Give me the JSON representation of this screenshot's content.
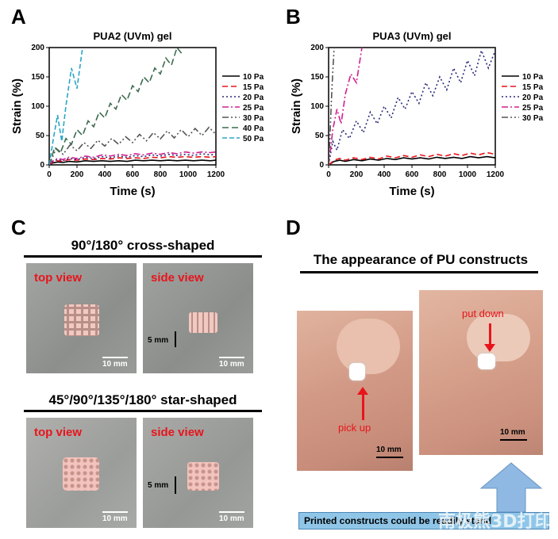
{
  "panels": {
    "A": {
      "letter": "A"
    },
    "B": {
      "letter": "B"
    },
    "C": {
      "letter": "C",
      "row1_title": "90°/180° cross-shaped",
      "row2_title": "45°/90°/135°/180° star-shaped",
      "top_view": "top view",
      "side_view": "side view",
      "scale_10mm": "10 mm",
      "scale_5mm": "5 mm"
    },
    "D": {
      "letter": "D",
      "title": "The appearance of PU constructs",
      "pick_up": "pick up",
      "put_down": "put down",
      "scale_10mm": "10 mm",
      "caption": "Printed constructs could be readily stand"
    }
  },
  "watermark": "南极熊3D打印",
  "colors": {
    "label_red": "#e8141c",
    "arrow_blue": "#8fb8e3",
    "caption_bg": "#8fc6e8"
  },
  "chart_data": [
    {
      "type": "line",
      "title": "PUA2 (UVm) gel",
      "xlabel": "Time (s)",
      "ylabel": "Strain (%)",
      "xlim": [
        0,
        1200
      ],
      "ylim": [
        0,
        200
      ],
      "xticks": [
        0,
        200,
        400,
        600,
        800,
        1000,
        1200
      ],
      "yticks": [
        0,
        50,
        100,
        150,
        200
      ],
      "legend": "right",
      "series": [
        {
          "name": "10 Pa",
          "color": "#000000",
          "dash": "",
          "x": [
            0,
            20,
            60,
            100,
            140,
            200,
            260,
            320,
            380,
            440,
            500,
            560,
            620,
            680,
            740,
            800,
            860,
            920,
            980,
            1040,
            1100,
            1160,
            1200
          ],
          "y": [
            0,
            3,
            5,
            4,
            6,
            5,
            7,
            6,
            7,
            6,
            7,
            6,
            8,
            7,
            8,
            7,
            8,
            7,
            8,
            7,
            8,
            7,
            8
          ]
        },
        {
          "name": "15 Pa",
          "color": "#e8141c",
          "dash": "7,4",
          "x": [
            0,
            20,
            60,
            100,
            140,
            200,
            260,
            320,
            380,
            440,
            500,
            560,
            620,
            680,
            740,
            800,
            860,
            920,
            980,
            1040,
            1100,
            1160,
            1200
          ],
          "y": [
            0,
            4,
            7,
            6,
            9,
            8,
            10,
            9,
            11,
            10,
            12,
            11,
            12,
            11,
            13,
            12,
            14,
            13,
            14,
            13,
            14,
            13,
            14
          ]
        },
        {
          "name": "20 Pa",
          "color": "#2a2a7a",
          "dash": "2,3",
          "x": [
            0,
            20,
            60,
            100,
            140,
            200,
            260,
            320,
            380,
            440,
            500,
            560,
            620,
            680,
            740,
            800,
            860,
            920,
            980,
            1040,
            1100,
            1160,
            1200
          ],
          "y": [
            0,
            5,
            9,
            7,
            11,
            9,
            13,
            11,
            14,
            12,
            15,
            13,
            16,
            14,
            17,
            15,
            18,
            16,
            18,
            16,
            19,
            17,
            18
          ]
        },
        {
          "name": "25 Pa",
          "color": "#d0208f",
          "dash": "8,3,2,3",
          "x": [
            0,
            20,
            60,
            100,
            140,
            200,
            260,
            320,
            380,
            440,
            500,
            560,
            620,
            680,
            740,
            800,
            860,
            920,
            980,
            1040,
            1100,
            1160,
            1200
          ],
          "y": [
            0,
            6,
            11,
            9,
            13,
            11,
            15,
            13,
            17,
            15,
            18,
            16,
            19,
            17,
            20,
            18,
            21,
            19,
            22,
            20,
            22,
            21,
            22
          ]
        },
        {
          "name": "30 Pa",
          "color": "#555555",
          "dash": "8,3,2,3,2,3",
          "x": [
            0,
            50,
            100,
            150,
            200,
            250,
            300,
            350,
            400,
            450,
            500,
            550,
            600,
            650,
            700,
            750,
            800,
            850,
            900,
            950,
            1000,
            1050,
            1100,
            1150,
            1200
          ],
          "y": [
            0,
            28,
            18,
            34,
            24,
            38,
            28,
            42,
            32,
            45,
            35,
            48,
            38,
            52,
            41,
            55,
            44,
            58,
            46,
            60,
            48,
            62,
            50,
            64,
            52
          ]
        },
        {
          "name": "40 Pa",
          "color": "#3d6b4f",
          "dash": "8,4",
          "x": [
            0,
            40,
            80,
            120,
            160,
            200,
            240,
            280,
            320,
            360,
            400,
            440,
            480,
            520,
            560,
            600,
            640,
            680,
            720,
            760,
            800,
            840,
            880,
            920,
            960
          ],
          "y": [
            0,
            30,
            20,
            45,
            35,
            60,
            50,
            75,
            65,
            90,
            80,
            105,
            95,
            120,
            110,
            135,
            125,
            150,
            140,
            165,
            155,
            182,
            170,
            200,
            188
          ]
        },
        {
          "name": "50 Pa",
          "color": "#2aa6c6",
          "dash": "6,3",
          "x": [
            0,
            30,
            60,
            90,
            120,
            160,
            200,
            240
          ],
          "y": [
            0,
            45,
            85,
            40,
            100,
            165,
            130,
            200
          ]
        }
      ]
    },
    {
      "type": "line",
      "title": "PUA3 (UVm) gel",
      "xlabel": "Time (s)",
      "ylabel": "Strain (%)",
      "xlim": [
        0,
        1200
      ],
      "ylim": [
        0,
        200
      ],
      "xticks": [
        0,
        200,
        400,
        600,
        800,
        1000,
        1200
      ],
      "yticks": [
        0,
        50,
        100,
        150,
        200
      ],
      "legend": "right",
      "series": [
        {
          "name": "10 Pa",
          "color": "#000000",
          "dash": "",
          "x": [
            0,
            40,
            80,
            120,
            180,
            240,
            300,
            360,
            420,
            480,
            540,
            600,
            660,
            720,
            780,
            840,
            900,
            960,
            1020,
            1080,
            1140,
            1200
          ],
          "y": [
            0,
            6,
            8,
            6,
            9,
            7,
            10,
            8,
            11,
            9,
            12,
            10,
            12,
            10,
            13,
            11,
            13,
            11,
            14,
            12,
            14,
            12
          ]
        },
        {
          "name": "15 Pa",
          "color": "#e8141c",
          "dash": "7,4",
          "x": [
            0,
            40,
            80,
            120,
            180,
            240,
            300,
            360,
            420,
            480,
            540,
            600,
            660,
            720,
            780,
            840,
            900,
            960,
            1020,
            1080,
            1140,
            1200
          ],
          "y": [
            0,
            8,
            11,
            8,
            12,
            9,
            13,
            10,
            15,
            12,
            16,
            13,
            17,
            14,
            18,
            15,
            19,
            16,
            20,
            17,
            21,
            18
          ]
        },
        {
          "name": "20 Pa",
          "color": "#2a2a7a",
          "dash": "2,3",
          "x": [
            0,
            30,
            60,
            100,
            150,
            200,
            250,
            300,
            350,
            400,
            450,
            500,
            550,
            600,
            650,
            700,
            750,
            800,
            850,
            900,
            950,
            1000,
            1050,
            1100,
            1150,
            1200
          ],
          "y": [
            0,
            40,
            25,
            60,
            45,
            75,
            55,
            90,
            70,
            100,
            80,
            115,
            95,
            125,
            105,
            140,
            118,
            150,
            128,
            165,
            140,
            178,
            152,
            195,
            165,
            195
          ]
        },
        {
          "name": "25 Pa",
          "color": "#d0208f",
          "dash": "8,3,2,3",
          "x": [
            0,
            30,
            60,
            90,
            120,
            160,
            200,
            240
          ],
          "y": [
            0,
            60,
            95,
            70,
            120,
            155,
            140,
            200
          ]
        },
        {
          "name": "30 Pa",
          "color": "#555555",
          "dash": "8,3,2,3,2,3",
          "x": [
            0,
            10,
            20,
            30,
            40
          ],
          "y": [
            0,
            50,
            110,
            160,
            200
          ]
        }
      ]
    }
  ]
}
